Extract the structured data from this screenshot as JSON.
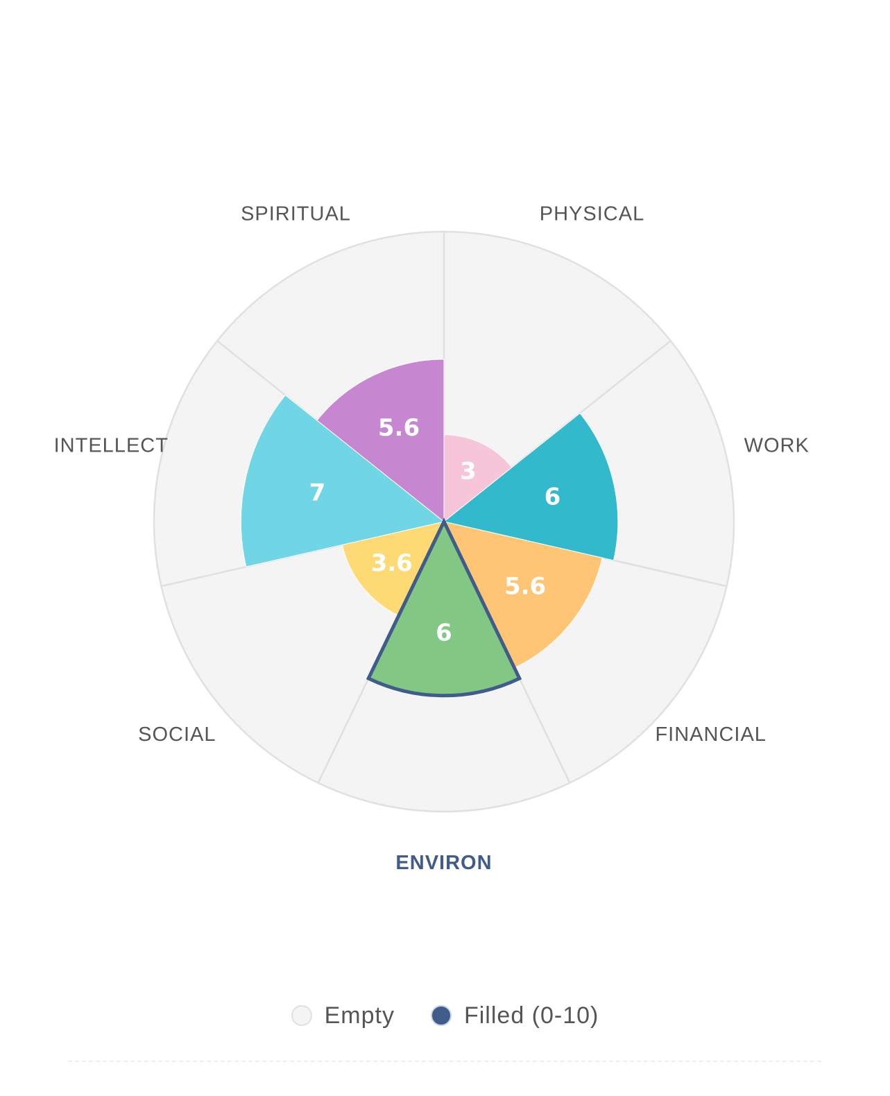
{
  "chart_data": {
    "type": "polar-area",
    "max_value": 10,
    "selected": "ENVIRON",
    "categories": [
      "PHYSICAL",
      "WORK",
      "FINANCIAL",
      "ENVIRON",
      "SOCIAL",
      "INTELLECT",
      "SPIRITUAL"
    ],
    "values": [
      3,
      6,
      5.6,
      6,
      3.6,
      7,
      5.6
    ],
    "value_labels": [
      "3",
      "6",
      "5.6",
      "6",
      "3.6",
      "7",
      "5.6"
    ],
    "colors": [
      "#f6c6d8",
      "#32b9cc",
      "#fdc574",
      "#82c783",
      "#fdda74",
      "#70d6e5",
      "#c686d0"
    ],
    "empty_color": "#f4f4f4",
    "grid_line_color": "#e0e0e0",
    "selected_outline_color": "#3f5c8a"
  },
  "legend": {
    "empty": {
      "label": "Empty",
      "color": "#f4f4f4"
    },
    "filled": {
      "label": "Filled (0-10)",
      "color": "#3f5c8a"
    }
  }
}
